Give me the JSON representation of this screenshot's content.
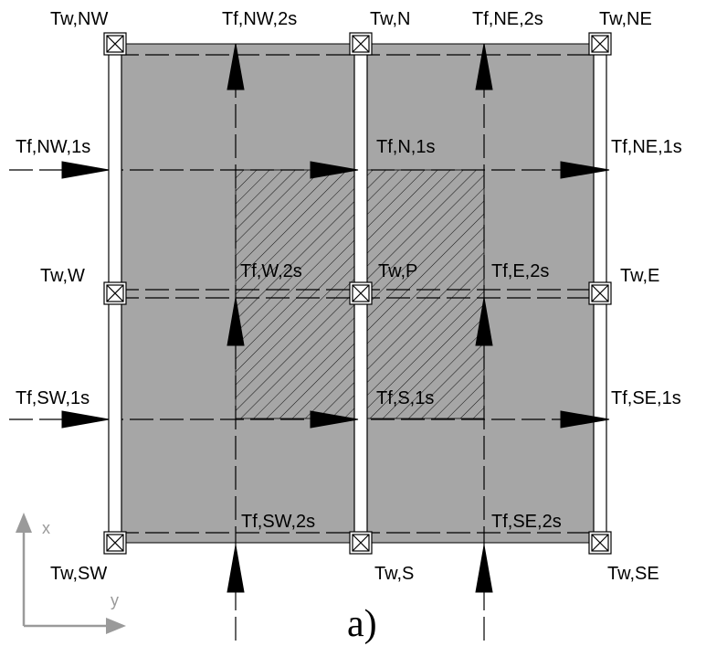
{
  "caption": "a)",
  "wall_labels": {
    "nw": "Tw,NW",
    "n": "Tw,N",
    "ne": "Tw,NE",
    "w": "Tw,W",
    "p": "Tw,P",
    "e": "Tw,E",
    "sw": "Tw,SW",
    "s": "Tw,S",
    "se": "Tw,SE"
  },
  "flux_labels": {
    "nw_2s": "Tf,NW,2s",
    "ne_2s": "Tf,NE,2s",
    "nw_1s": "Tf,NW,1s",
    "n_1s": "Tf,N,1s",
    "ne_1s": "Tf,NE,1s",
    "w_2s": "Tf,W,2s",
    "e_2s": "Tf,E,2s",
    "sw_1s": "Tf,SW,1s",
    "s_1s": "Tf,S,1s",
    "se_1s": "Tf,SE,1s",
    "sw_2s": "Tf,SW,2s",
    "se_2s": "Tf,SE,2s"
  },
  "axes": {
    "x": "x",
    "y": "y"
  },
  "colors": {
    "plate_fill": "#a6a6a6",
    "line": "#000000",
    "axis": "#9a9a9a",
    "background": "#ffffff"
  }
}
